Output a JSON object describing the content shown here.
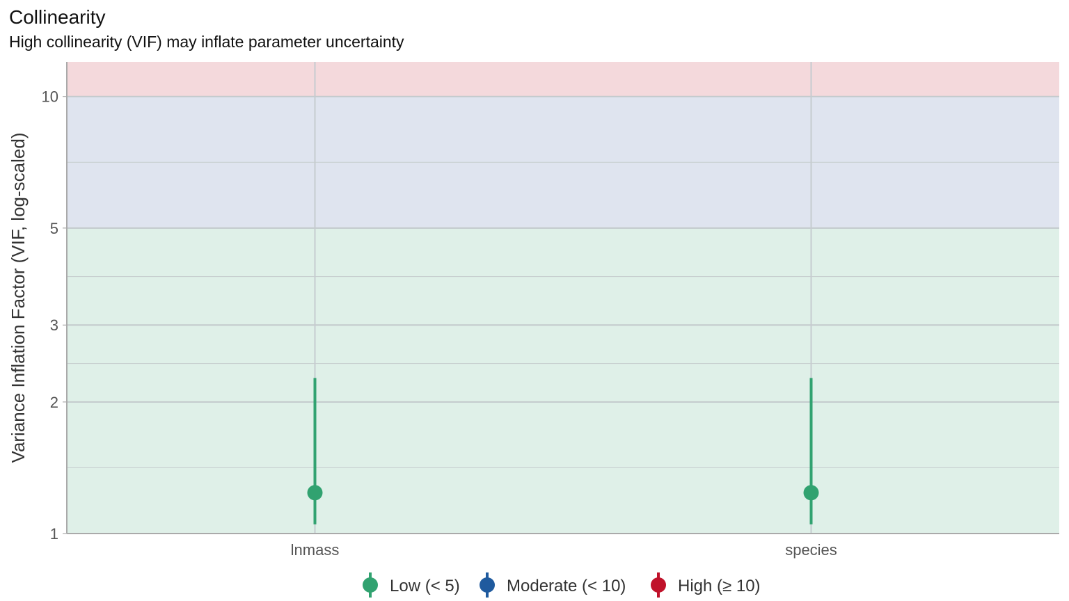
{
  "title": "Collinearity",
  "subtitle": "High collinearity (VIF) may inflate parameter uncertainty",
  "chart_data": {
    "type": "scatter",
    "title": "Collinearity",
    "subtitle": "High collinearity (VIF) may inflate parameter uncertainty",
    "xlabel": "",
    "ylabel": "Variance Inflation Factor (VIF, log-scaled)",
    "y_scale": "log",
    "ylim": [
      1,
      12
    ],
    "y_ticks": [
      1,
      2,
      3,
      5,
      10
    ],
    "y_tick_labels": [
      "1",
      "2",
      "3",
      "5",
      "10"
    ],
    "categories": [
      "lnmass",
      "species"
    ],
    "points": [
      {
        "x": "lnmass",
        "vif": 1.24,
        "ci_low": 1.05,
        "ci_high": 2.27,
        "group": "Low (< 5)"
      },
      {
        "x": "species",
        "vif": 1.24,
        "ci_low": 1.05,
        "ci_high": 2.27,
        "group": "Low (< 5)"
      }
    ],
    "bands": [
      {
        "name": "Low (< 5)",
        "from": 1,
        "to": 5,
        "color": "#dff0e8"
      },
      {
        "name": "Moderate (< 10)",
        "from": 5,
        "to": 10,
        "color": "#dfe4ef"
      },
      {
        "name": "High (≥ 10)",
        "from": 10,
        "to": 12,
        "color": "#f4d9dc"
      }
    ],
    "legend": {
      "position": "bottom",
      "entries": [
        {
          "label": "Low (< 5)",
          "color": "#31a270"
        },
        {
          "label": "Moderate (< 10)",
          "color": "#1f5a9e"
        },
        {
          "label": "High (≥ 10)",
          "color": "#c0122a"
        }
      ]
    },
    "grid": true
  }
}
